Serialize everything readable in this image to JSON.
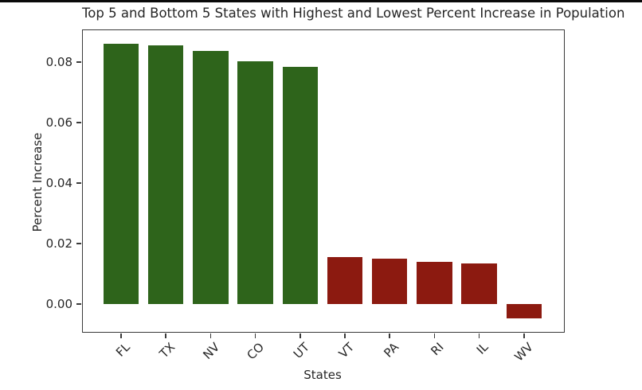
{
  "window": {
    "top_edge_color": "#0a0a0a"
  },
  "chart_data": {
    "type": "bar",
    "title": "Top 5 and Bottom 5 States with Highest and Lowest Percent Increase in Population",
    "xlabel": "States",
    "ylabel": "Percent Increase",
    "categories": [
      "FL",
      "TX",
      "NV",
      "CO",
      "UT",
      "VT",
      "PA",
      "RI",
      "IL",
      "WV"
    ],
    "values": [
      0.086,
      0.0855,
      0.0837,
      0.0803,
      0.0784,
      0.0155,
      0.015,
      0.0139,
      0.0134,
      -0.0047
    ],
    "bar_colors": [
      "#2e641b",
      "#2e641b",
      "#2e641b",
      "#2e641b",
      "#2e641b",
      "#8c1a10",
      "#8c1a10",
      "#8c1a10",
      "#8c1a10",
      "#8c1a10"
    ],
    "color_groups": {
      "top5_green": "#2e641b",
      "bottom5_red": "#8c1a10"
    },
    "yticks": [
      0,
      0.02,
      0.04,
      0.06,
      0.08
    ],
    "ytick_labels": [
      "0.00",
      "0.02",
      "0.04",
      "0.06",
      "0.08"
    ],
    "ylim": [
      -0.0092,
      0.0905
    ],
    "grid": false,
    "legend_position": "none"
  }
}
